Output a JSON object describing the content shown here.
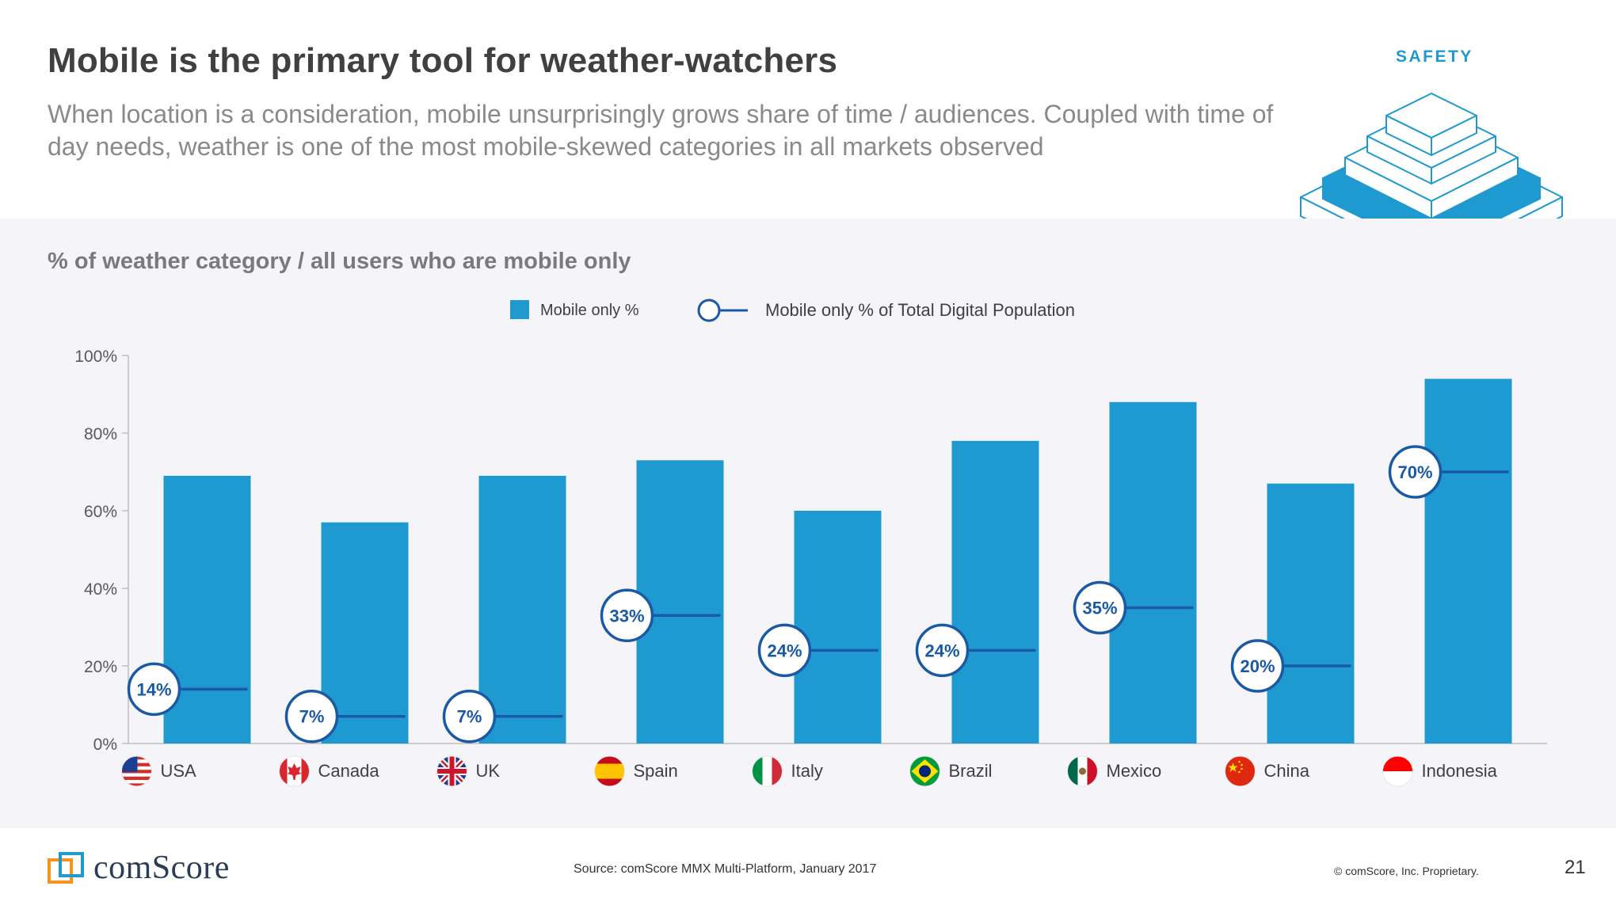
{
  "header": {
    "title": "Mobile is the primary tool for weather-watchers",
    "subtitle": "When location is a consideration, mobile unsurprisingly grows share of time / audiences. Coupled with time of day needs, weather is one of the most mobile-skewed categories in all markets observed",
    "section_label": "SAFETY"
  },
  "colors": {
    "bar": "#1f9ad0",
    "line": "#1a5aa5",
    "bar_dark": "#1a5aa5",
    "chart_bg": "#f4f4f9"
  },
  "chart_data": {
    "type": "bar",
    "title": "% of weather category / all users who are mobile only",
    "categories": [
      "USA",
      "Canada",
      "UK",
      "Spain",
      "Italy",
      "Brazil",
      "Mexico",
      "China",
      "Indonesia"
    ],
    "flags": [
      "us-flag-icon",
      "canada-flag-icon",
      "uk-flag-icon",
      "spain-flag-icon",
      "italy-flag-icon",
      "brazil-flag-icon",
      "mexico-flag-icon",
      "china-flag-icon",
      "indonesia-flag-icon"
    ],
    "series": [
      {
        "name": "Mobile only %",
        "kind": "bar",
        "values": [
          69,
          57,
          69,
          73,
          60,
          78,
          88,
          67,
          94
        ]
      },
      {
        "name": "Mobile only % of Total Digital Population",
        "kind": "marker-line",
        "values": [
          14,
          7,
          7,
          33,
          24,
          24,
          35,
          20,
          70
        ],
        "labels": [
          "14%",
          "7%",
          "7%",
          "33%",
          "24%",
          "24%",
          "35%",
          "20%",
          "70%"
        ]
      }
    ],
    "yticks": [
      "0%",
      "20%",
      "40%",
      "60%",
      "80%",
      "100%"
    ],
    "ylim": [
      0,
      100
    ],
    "xlabel": "",
    "ylabel": "",
    "legend_position": "top-center",
    "grid": false
  },
  "footer": {
    "logo_text": "comScore",
    "source": "Source: comScore MMX Multi-Platform, January 2017",
    "copyright": "© comScore, Inc. Proprietary.",
    "page_number": "21"
  }
}
